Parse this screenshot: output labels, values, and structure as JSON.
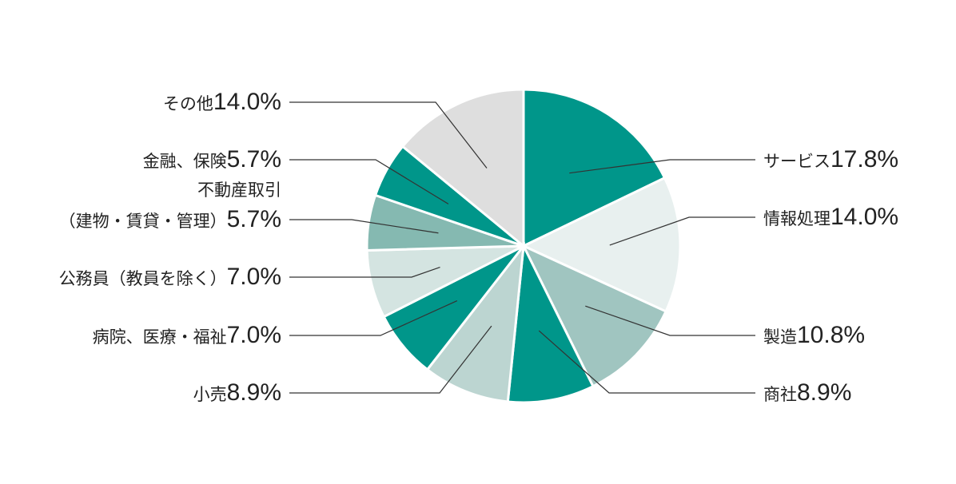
{
  "chart_data": {
    "type": "pie",
    "categories": [
      "サービス",
      "情報処理",
      "製造",
      "商社",
      "小売",
      "病院、医療・福祉",
      "公務員（教員を除く）",
      "不動産取引\n（建物・賃貸・管理）",
      "金融、保険",
      "その他"
    ],
    "values": [
      17.8,
      14.0,
      10.8,
      8.9,
      8.9,
      7.0,
      7.0,
      5.7,
      5.7,
      14.0
    ],
    "value_labels": [
      "17.8%",
      "14.0%",
      "10.8%",
      "8.9%",
      "8.9%",
      "7.0%",
      "7.0%",
      "5.7%",
      "5.7%",
      "14.0%"
    ],
    "colors": [
      "#00968a",
      "#e8f0ef",
      "#a0c5c0",
      "#00968a",
      "#bcd5d1",
      "#00968a",
      "#d4e4e1",
      "#85b9b1",
      "#00968a",
      "#dedede"
    ]
  }
}
